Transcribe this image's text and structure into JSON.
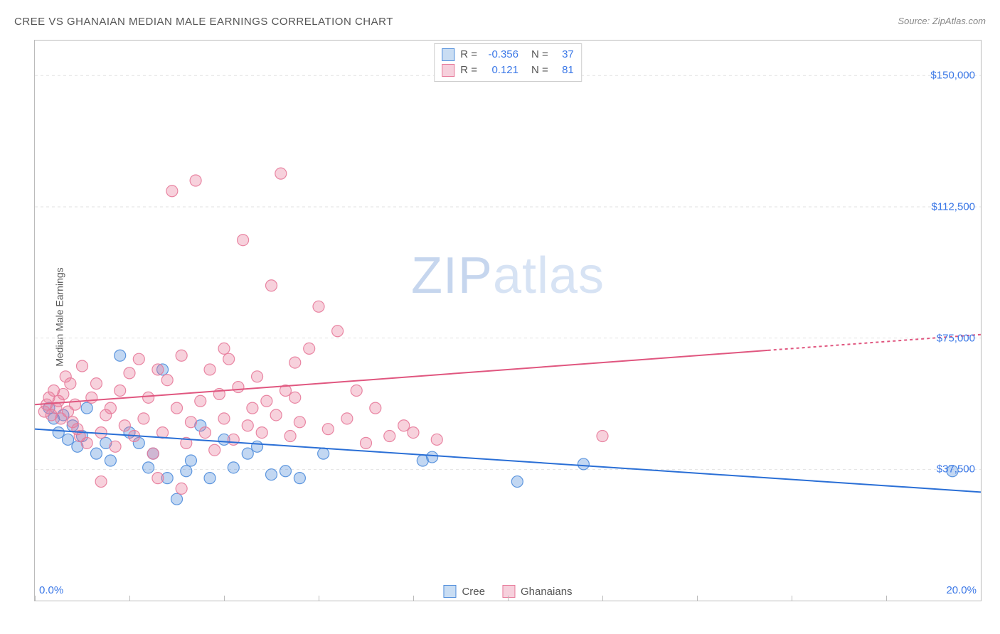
{
  "title": "CREE VS GHANAIAN MEDIAN MALE EARNINGS CORRELATION CHART",
  "source": "Source: ZipAtlas.com",
  "watermark_a": "ZIP",
  "watermark_b": "atlas",
  "ylabel": "Median Male Earnings",
  "chart": {
    "type": "scatter",
    "xlim": [
      0,
      20
    ],
    "ylim": [
      0,
      160000
    ],
    "x_axis_visible_bottom_only": true,
    "xtick_major": [
      0,
      2,
      4,
      6,
      8,
      10,
      12,
      14,
      16,
      18,
      20
    ],
    "xtick_labels_shown": [
      {
        "x": 0,
        "label": "0.0%"
      },
      {
        "x": 20,
        "label": "20.0%"
      }
    ],
    "ytick_gridlines": [
      37500,
      75000,
      112500,
      150000
    ],
    "ytick_labels": [
      {
        "y": 37500,
        "label": "$37,500"
      },
      {
        "y": 75000,
        "label": "$75,000"
      },
      {
        "y": 112500,
        "label": "$112,500"
      },
      {
        "y": 150000,
        "label": "$150,000"
      }
    ],
    "grid_color": "#e2e2e2",
    "axis_color": "#bbbbbb",
    "background_color": "#ffffff",
    "marker_radius": 8,
    "marker_fill_opacity": 0.35,
    "marker_stroke_opacity": 0.9,
    "marker_stroke_width": 1.2,
    "series": [
      {
        "name": "Cree",
        "color": "#4f8ddb",
        "swatch_fill": "#c9ddf3",
        "swatch_border": "#4f8ddb",
        "R": "-0.356",
        "N": "37",
        "trend": {
          "x1": 0,
          "y1": 49000,
          "x2": 20,
          "y2": 31000,
          "color": "#2a6fd6",
          "width": 2,
          "dashed_after_x": 20
        },
        "points": [
          [
            0.3,
            55000
          ],
          [
            0.4,
            52000
          ],
          [
            0.5,
            48000
          ],
          [
            0.6,
            53000
          ],
          [
            0.7,
            46000
          ],
          [
            0.8,
            50000
          ],
          [
            0.9,
            44000
          ],
          [
            1.0,
            47000
          ],
          [
            1.1,
            55000
          ],
          [
            1.3,
            42000
          ],
          [
            1.5,
            45000
          ],
          [
            1.6,
            40000
          ],
          [
            1.8,
            70000
          ],
          [
            2.0,
            48000
          ],
          [
            2.2,
            45000
          ],
          [
            2.4,
            38000
          ],
          [
            2.5,
            42000
          ],
          [
            2.7,
            66000
          ],
          [
            2.8,
            35000
          ],
          [
            3.0,
            29000
          ],
          [
            3.2,
            37000
          ],
          [
            3.3,
            40000
          ],
          [
            3.5,
            50000
          ],
          [
            3.7,
            35000
          ],
          [
            4.0,
            46000
          ],
          [
            4.2,
            38000
          ],
          [
            4.5,
            42000
          ],
          [
            4.7,
            44000
          ],
          [
            5.0,
            36000
          ],
          [
            5.3,
            37000
          ],
          [
            5.6,
            35000
          ],
          [
            6.1,
            42000
          ],
          [
            8.2,
            40000
          ],
          [
            8.4,
            41000
          ],
          [
            10.2,
            34000
          ],
          [
            11.6,
            39000
          ],
          [
            19.4,
            37000
          ]
        ]
      },
      {
        "name": "Ghanaians",
        "color": "#e77a9a",
        "swatch_fill": "#f6d0dc",
        "swatch_border": "#e77a9a",
        "R": "0.121",
        "N": "81",
        "trend": {
          "x1": 0,
          "y1": 56000,
          "x2": 20,
          "y2": 76000,
          "color": "#e0567f",
          "width": 2,
          "dashed_after_x": 15.5
        },
        "points": [
          [
            0.2,
            54000
          ],
          [
            0.25,
            56000
          ],
          [
            0.3,
            58000
          ],
          [
            0.35,
            53000
          ],
          [
            0.4,
            60000
          ],
          [
            0.45,
            55000
          ],
          [
            0.5,
            57000
          ],
          [
            0.55,
            52000
          ],
          [
            0.6,
            59000
          ],
          [
            0.65,
            64000
          ],
          [
            0.7,
            54000
          ],
          [
            0.75,
            62000
          ],
          [
            0.8,
            51000
          ],
          [
            0.85,
            56000
          ],
          [
            0.9,
            49000
          ],
          [
            0.95,
            47000
          ],
          [
            1.0,
            67000
          ],
          [
            1.1,
            45000
          ],
          [
            1.2,
            58000
          ],
          [
            1.3,
            62000
          ],
          [
            1.4,
            48000
          ],
          [
            1.5,
            53000
          ],
          [
            1.6,
            55000
          ],
          [
            1.7,
            44000
          ],
          [
            1.8,
            60000
          ],
          [
            1.9,
            50000
          ],
          [
            2.0,
            65000
          ],
          [
            2.1,
            47000
          ],
          [
            2.2,
            69000
          ],
          [
            2.3,
            52000
          ],
          [
            2.4,
            58000
          ],
          [
            2.5,
            42000
          ],
          [
            2.6,
            66000
          ],
          [
            2.7,
            48000
          ],
          [
            2.8,
            63000
          ],
          [
            2.9,
            117000
          ],
          [
            3.0,
            55000
          ],
          [
            3.1,
            70000
          ],
          [
            3.2,
            45000
          ],
          [
            3.3,
            51000
          ],
          [
            3.4,
            120000
          ],
          [
            3.5,
            57000
          ],
          [
            3.6,
            48000
          ],
          [
            3.7,
            66000
          ],
          [
            3.8,
            43000
          ],
          [
            3.9,
            59000
          ],
          [
            4.0,
            52000
          ],
          [
            4.1,
            69000
          ],
          [
            4.2,
            46000
          ],
          [
            4.3,
            61000
          ],
          [
            4.4,
            103000
          ],
          [
            4.5,
            50000
          ],
          [
            4.6,
            55000
          ],
          [
            4.7,
            64000
          ],
          [
            4.8,
            48000
          ],
          [
            4.9,
            57000
          ],
          [
            5.0,
            90000
          ],
          [
            5.1,
            53000
          ],
          [
            5.2,
            122000
          ],
          [
            5.3,
            60000
          ],
          [
            5.4,
            47000
          ],
          [
            5.5,
            68000
          ],
          [
            5.6,
            51000
          ],
          [
            5.8,
            72000
          ],
          [
            6.0,
            84000
          ],
          [
            6.2,
            49000
          ],
          [
            6.4,
            77000
          ],
          [
            6.6,
            52000
          ],
          [
            6.8,
            60000
          ],
          [
            7.0,
            45000
          ],
          [
            7.2,
            55000
          ],
          [
            7.5,
            47000
          ],
          [
            7.8,
            50000
          ],
          [
            8.0,
            48000
          ],
          [
            8.5,
            46000
          ],
          [
            3.1,
            32000
          ],
          [
            2.6,
            35000
          ],
          [
            1.4,
            34000
          ],
          [
            12.0,
            47000
          ],
          [
            4.0,
            72000
          ],
          [
            5.5,
            58000
          ]
        ]
      }
    ],
    "legend_bottom": [
      {
        "swatch_fill": "#c9ddf3",
        "swatch_border": "#4f8ddb",
        "label": "Cree"
      },
      {
        "swatch_fill": "#f6d0dc",
        "swatch_border": "#e77a9a",
        "label": "Ghanaians"
      }
    ]
  }
}
